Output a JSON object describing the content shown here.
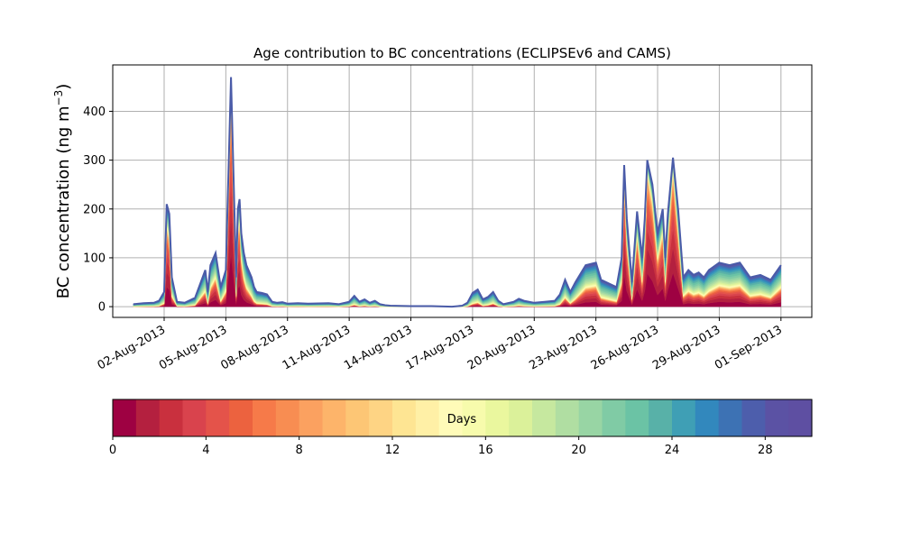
{
  "chart_data": {
    "type": "area",
    "title": "Age contribution to BC concentrations (ECLIPSEv6 and CAMS)",
    "ylabel": "BC concentration (ng m",
    "ylabel_sup": "−3",
    "ylabel_close": ")",
    "xlim": [
      "2013-07-30T12:00",
      "2013-09-02T12:00"
    ],
    "ylim": [
      -22,
      495
    ],
    "grid": true,
    "x_tick_labels": [
      "02-Aug-2013",
      "05-Aug-2013",
      "08-Aug-2013",
      "11-Aug-2013",
      "14-Aug-2013",
      "17-Aug-2013",
      "20-Aug-2013",
      "23-Aug-2013",
      "26-Aug-2013",
      "29-Aug-2013",
      "01-Sep-2013"
    ],
    "x_ticks": [
      "2013-08-02",
      "2013-08-05",
      "2013-08-08",
      "2013-08-11",
      "2013-08-14",
      "2013-08-17",
      "2013-08-20",
      "2013-08-23",
      "2013-08-26",
      "2013-08-29",
      "2013-09-01"
    ],
    "y_ticks": [
      0,
      100,
      200,
      300,
      400
    ],
    "y_tick_labels": [
      "0",
      "100",
      "200",
      "300",
      "400"
    ],
    "total_series": {
      "name": "total",
      "x": [
        "2013-07-31T12:00",
        "2013-08-01T00:00",
        "2013-08-01T12:00",
        "2013-08-01T18:00",
        "2013-08-02T00:00",
        "2013-08-02T03:00",
        "2013-08-02T06:00",
        "2013-08-02T09:00",
        "2013-08-02T15:00",
        "2013-08-03T00:00",
        "2013-08-03T12:00",
        "2013-08-04T00:00",
        "2013-08-04T03:00",
        "2013-08-04T06:00",
        "2013-08-04T12:00",
        "2013-08-04T18:00",
        "2013-08-05T00:00",
        "2013-08-05T06:00",
        "2013-08-05T12:00",
        "2013-08-05T14:00",
        "2013-08-05T16:00",
        "2013-08-05T18:00",
        "2013-08-05T21:00",
        "2013-08-06T00:00",
        "2013-08-06T06:00",
        "2013-08-06T09:00",
        "2013-08-06T12:00",
        "2013-08-06T18:00",
        "2013-08-07T00:00",
        "2013-08-07T06:00",
        "2013-08-07T12:00",
        "2013-08-07T18:00",
        "2013-08-08T00:00",
        "2013-08-08T12:00",
        "2013-08-09T00:00",
        "2013-08-10T00:00",
        "2013-08-10T12:00",
        "2013-08-11T00:00",
        "2013-08-11T06:00",
        "2013-08-11T12:00",
        "2013-08-11T18:00",
        "2013-08-12T00:00",
        "2013-08-12T06:00",
        "2013-08-12T12:00",
        "2013-08-12T18:00",
        "2013-08-13T00:00",
        "2013-08-14T00:00",
        "2013-08-15T00:00",
        "2013-08-16T00:00",
        "2013-08-16T12:00",
        "2013-08-16T18:00",
        "2013-08-17T00:00",
        "2013-08-17T06:00",
        "2013-08-17T12:00",
        "2013-08-17T18:00",
        "2013-08-18T00:00",
        "2013-08-18T06:00",
        "2013-08-18T12:00",
        "2013-08-19T00:00",
        "2013-08-19T06:00",
        "2013-08-19T12:00",
        "2013-08-19T18:00",
        "2013-08-20T00:00",
        "2013-08-20T12:00",
        "2013-08-21T00:00",
        "2013-08-21T06:00",
        "2013-08-21T12:00",
        "2013-08-21T18:00",
        "2013-08-22T00:00",
        "2013-08-22T12:00",
        "2013-08-23T00:00",
        "2013-08-23T06:00",
        "2013-08-23T12:00",
        "2013-08-24T00:00",
        "2013-08-24T06:00",
        "2013-08-24T09:00",
        "2013-08-24T12:00",
        "2013-08-24T18:00",
        "2013-08-25T00:00",
        "2013-08-25T06:00",
        "2013-08-25T09:00",
        "2013-08-25T12:00",
        "2013-08-25T18:00",
        "2013-08-26T00:00",
        "2013-08-26T06:00",
        "2013-08-26T09:00",
        "2013-08-26T12:00",
        "2013-08-26T18:00",
        "2013-08-27T00:00",
        "2013-08-27T06:00",
        "2013-08-27T12:00",
        "2013-08-27T18:00",
        "2013-08-28T00:00",
        "2013-08-28T06:00",
        "2013-08-28T12:00",
        "2013-08-29T00:00",
        "2013-08-29T12:00",
        "2013-08-30T00:00",
        "2013-08-30T12:00",
        "2013-08-31T00:00",
        "2013-08-31T12:00",
        "2013-09-01T00:00"
      ],
      "values": [
        5,
        7,
        8,
        12,
        30,
        210,
        190,
        60,
        10,
        8,
        18,
        75,
        30,
        85,
        110,
        40,
        75,
        470,
        60,
        200,
        220,
        150,
        110,
        85,
        60,
        40,
        30,
        28,
        25,
        10,
        8,
        9,
        6,
        7,
        6,
        7,
        5,
        10,
        22,
        10,
        15,
        8,
        12,
        5,
        3,
        2,
        1,
        1,
        0,
        2,
        8,
        28,
        35,
        15,
        20,
        30,
        12,
        5,
        10,
        16,
        12,
        10,
        8,
        10,
        12,
        25,
        55,
        30,
        50,
        85,
        90,
        55,
        50,
        40,
        100,
        290,
        180,
        50,
        195,
        100,
        180,
        300,
        250,
        150,
        200,
        100,
        190,
        305,
        200,
        60,
        75,
        65,
        70,
        60,
        75,
        90,
        85,
        90,
        60,
        65,
        55,
        85
      ]
    },
    "age_bands": {
      "label": "Days",
      "range": [
        0,
        30
      ],
      "step": 1,
      "ticks": [
        0,
        4,
        8,
        12,
        16,
        20,
        24,
        28
      ],
      "tick_labels": [
        "0",
        "4",
        "8",
        "12",
        "16",
        "20",
        "24",
        "28"
      ],
      "colors": [
        "#9e0142",
        "#b4203f",
        "#c9303e",
        "#d9434d",
        "#e4534a",
        "#ec623f",
        "#f67a49",
        "#f88d52",
        "#fba160",
        "#fdb46a",
        "#fdc675",
        "#fed484",
        "#fee593",
        "#fff0a6",
        "#fffbb8",
        "#f7fbac",
        "#eaf79e",
        "#dbf19a",
        "#c6e89f",
        "#b0dea2",
        "#98d5a4",
        "#80cba5",
        "#6bc3a5",
        "#58b1a8",
        "#3f9fb5",
        "#3288bd",
        "#3d72b4",
        "#4d5eac",
        "#5b52a4",
        "#5e4fa2"
      ]
    }
  }
}
